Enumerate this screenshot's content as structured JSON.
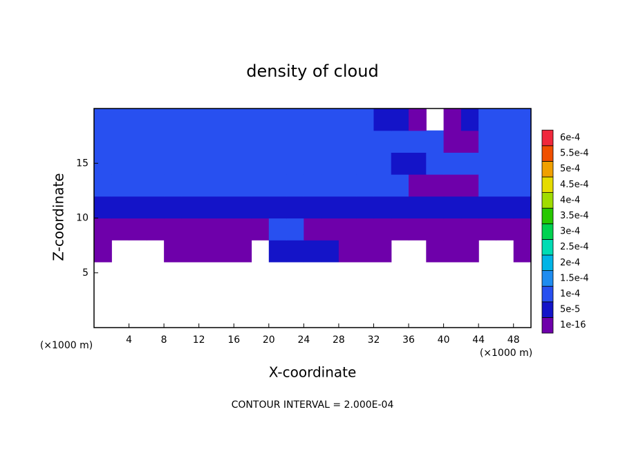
{
  "chart_data": {
    "type": "contour",
    "title": "density of cloud",
    "x_label": "X-coordinate",
    "y_label": "Z-coordinate",
    "x_unit_label": "(×1000 m)",
    "y_unit_label": "(×1000 m)",
    "annotation": "CONTOUR INTERVAL = 2.000E-04",
    "xlim": [
      0,
      50
    ],
    "ylim": [
      0,
      20
    ],
    "xticks": [
      4,
      8,
      12,
      16,
      20,
      24,
      28,
      32,
      36,
      40,
      44,
      48
    ],
    "yticks": [
      5,
      10,
      15
    ],
    "levels": [
      {
        "value": 1e-16,
        "label": "1e-16"
      },
      {
        "value": 5e-05,
        "label": "5e-5"
      },
      {
        "value": 0.0001,
        "label": "1e-4"
      },
      {
        "value": 0.00015,
        "label": "1.5e-4"
      },
      {
        "value": 0.0002,
        "label": "2e-4"
      },
      {
        "value": 0.00025,
        "label": "2.5e-4"
      },
      {
        "value": 0.0003,
        "label": "3e-4"
      },
      {
        "value": 0.00035,
        "label": "3.5e-4"
      },
      {
        "value": 0.0004,
        "label": "4e-4"
      },
      {
        "value": 0.00045,
        "label": "4.5e-4"
      },
      {
        "value": 0.0005,
        "label": "5e-4"
      },
      {
        "value": 0.00055,
        "label": "5.5e-4"
      },
      {
        "value": 0.0006,
        "label": "6e-4"
      }
    ],
    "colors": [
      "#6e00aa",
      "#1414c8",
      "#2850f0",
      "#1e8cf0",
      "#00b4e6",
      "#00dcb4",
      "#00d250",
      "#28c800",
      "#a0dc00",
      "#e6dc00",
      "#f0a000",
      "#f05000",
      "#f0283c",
      "#f08c8c"
    ],
    "values": [
      [
        null,
        null,
        null,
        null,
        null,
        null,
        null,
        null,
        null,
        null,
        null,
        null,
        null,
        null,
        null,
        null,
        null,
        null,
        null,
        null,
        null,
        null,
        null,
        null,
        null
      ],
      [
        null,
        null,
        null,
        null,
        null,
        null,
        null,
        null,
        null,
        null,
        null,
        null,
        null,
        null,
        null,
        null,
        null,
        null,
        null,
        null,
        null,
        null,
        null,
        null,
        null
      ],
      [
        null,
        null,
        null,
        null,
        null,
        null,
        null,
        null,
        null,
        null,
        null,
        null,
        null,
        null,
        null,
        null,
        null,
        null,
        null,
        null,
        null,
        null,
        null,
        null,
        null
      ],
      [
        2e-05,
        null,
        null,
        null,
        2e-05,
        2e-05,
        2e-05,
        2e-05,
        2e-05,
        null,
        7e-05,
        7e-05,
        7e-05,
        7e-05,
        2e-05,
        2e-05,
        2e-05,
        null,
        null,
        2e-05,
        2e-05,
        2e-05,
        null,
        null,
        2e-05
      ],
      [
        2e-05,
        2e-05,
        2e-05,
        2e-05,
        2e-05,
        2e-05,
        2e-05,
        2e-05,
        2e-05,
        2e-05,
        0.00011,
        0.00011,
        2e-05,
        2e-05,
        2e-05,
        2e-05,
        2e-05,
        2e-05,
        2e-05,
        2e-05,
        2e-05,
        2e-05,
        2e-05,
        2e-05,
        2e-05
      ],
      [
        8e-05,
        8e-05,
        8e-05,
        8e-05,
        8e-05,
        8e-05,
        8e-05,
        8e-05,
        8e-05,
        8e-05,
        8e-05,
        8e-05,
        8e-05,
        8e-05,
        8e-05,
        8e-05,
        8e-05,
        8e-05,
        7e-05,
        7e-05,
        7e-05,
        7e-05,
        7e-05,
        7e-05,
        7e-05
      ],
      [
        0.0001,
        0.0001,
        0.00011,
        0.00011,
        0.00011,
        0.00011,
        0.00011,
        0.00011,
        0.00011,
        0.00011,
        0.00011,
        0.00011,
        0.00011,
        0.00011,
        0.00011,
        0.00011,
        0.00011,
        0.00011,
        3e-05,
        3e-05,
        3e-05,
        3e-05,
        0.00011,
        0.00011,
        0.00011
      ],
      [
        0.00012,
        0.00012,
        0.00012,
        0.00012,
        0.00012,
        0.00012,
        0.00012,
        0.00012,
        0.00012,
        0.00012,
        0.00012,
        0.00012,
        0.00012,
        0.00012,
        0.00012,
        0.00012,
        0.00012,
        7e-05,
        7e-05,
        0.00011,
        0.00011,
        0.00011,
        0.00011,
        0.00012,
        0.00012
      ],
      [
        0.00013,
        0.00013,
        0.00013,
        0.00013,
        0.00013,
        0.00013,
        0.00013,
        0.00013,
        0.00013,
        0.00013,
        0.00013,
        0.00013,
        0.00013,
        0.00013,
        0.00013,
        0.00013,
        0.00013,
        0.00012,
        0.00012,
        0.00012,
        3e-05,
        3e-05,
        0.00012,
        0.00012,
        0.00012
      ],
      [
        0.00011,
        0.00011,
        0.00011,
        0.00011,
        0.00011,
        0.00011,
        0.00011,
        0.00011,
        0.00011,
        0.00011,
        0.00011,
        0.00011,
        0.00011,
        0.00011,
        0.00011,
        0.00011,
        7e-05,
        7e-05,
        3e-05,
        null,
        3e-05,
        7e-05,
        0.00011,
        0.00011,
        0.00011
      ]
    ]
  }
}
